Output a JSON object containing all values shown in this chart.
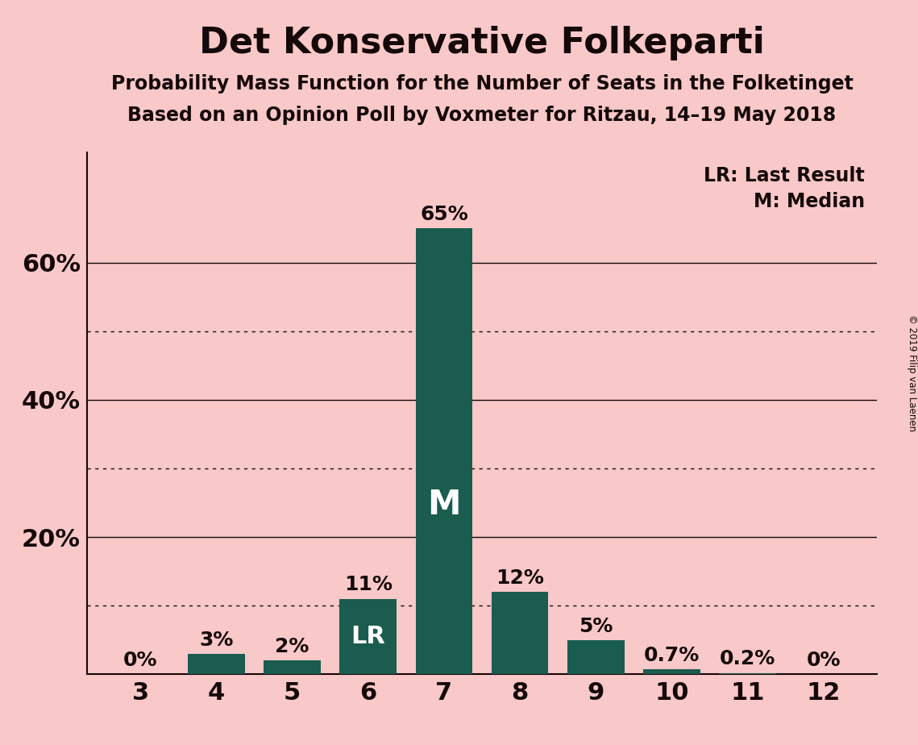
{
  "title": "Det Konservative Folkeparti",
  "subtitle1": "Probability Mass Function for the Number of Seats in the Folketinget",
  "subtitle2": "Based on an Opinion Poll by Voxmeter for Ritzau, 14–19 May 2018",
  "copyright": "© 2019 Filip van Laenen",
  "seats": [
    3,
    4,
    5,
    6,
    7,
    8,
    9,
    10,
    11,
    12
  ],
  "probabilities": [
    0.0,
    0.03,
    0.02,
    0.11,
    0.65,
    0.12,
    0.05,
    0.007,
    0.002,
    0.0
  ],
  "prob_labels": [
    "0%",
    "3%",
    "2%",
    "11%",
    "65%",
    "12%",
    "5%",
    "0.7%",
    "0.2%",
    "0%"
  ],
  "bar_color": "#1a5c4e",
  "background_color": "#f9c8c8",
  "text_color": "#150808",
  "yticks": [
    0.0,
    0.2,
    0.4,
    0.6
  ],
  "ytick_labels": [
    "",
    "20%",
    "40%",
    "60%"
  ],
  "dotted_gridlines": [
    0.1,
    0.3,
    0.5
  ],
  "solid_gridlines": [
    0.2,
    0.4,
    0.6
  ],
  "lr_bar_index": 3,
  "median_bar_index": 4,
  "legend_line1": "LR: Last Result",
  "legend_line2": "M: Median",
  "bar_width": 0.75,
  "xlim": [
    2.3,
    12.7
  ],
  "ylim": [
    0,
    0.76
  ],
  "title_fontsize": 32,
  "subtitle_fontsize": 17,
  "tick_fontsize": 22,
  "label_fontsize": 18,
  "legend_fontsize": 17,
  "lr_fontsize": 22,
  "m_fontsize": 30
}
